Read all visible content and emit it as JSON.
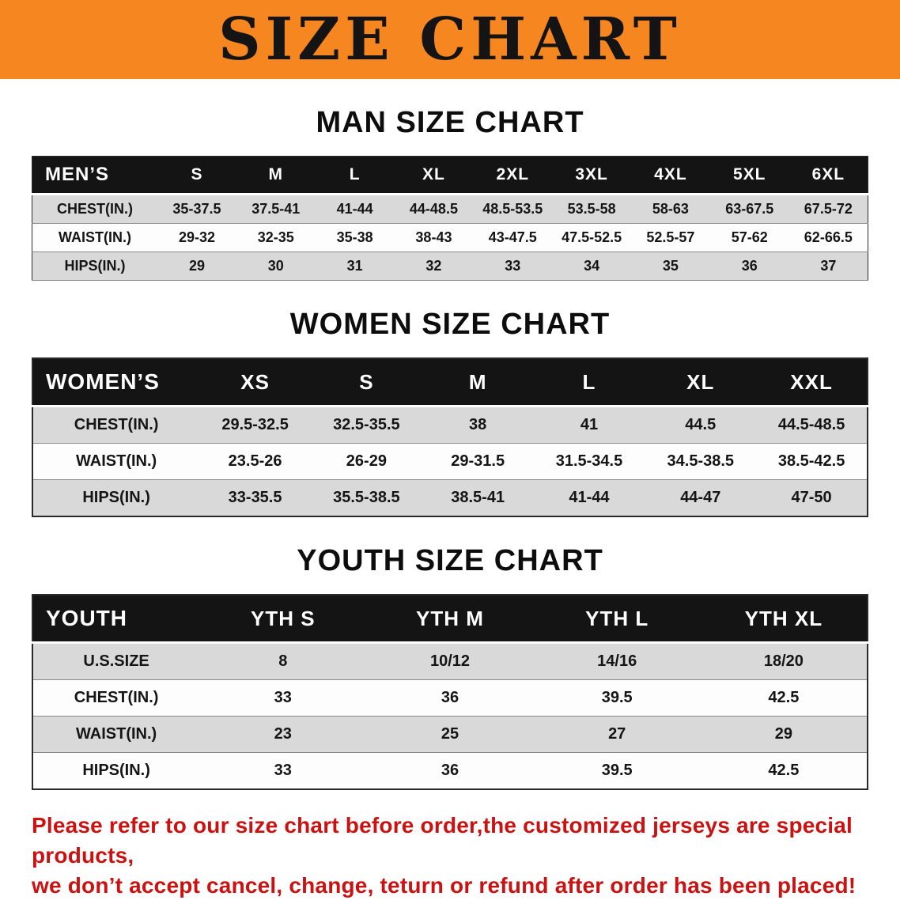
{
  "banner": {
    "title": "SIZE CHART",
    "background_color": "#f6861f",
    "text_color": "#141414"
  },
  "sections": [
    {
      "heading": "MAN SIZE CHART",
      "table": {
        "header": [
          "MEN’S",
          "S",
          "M",
          "L",
          "XL",
          "2XL",
          "3XL",
          "4XL",
          "5XL",
          "6XL"
        ],
        "rows": [
          [
            "CHEST(IN.)",
            "35-37.5",
            "37.5-41",
            "41-44",
            "44-48.5",
            "48.5-53.5",
            "53.5-58",
            "58-63",
            "63-67.5",
            "67.5-72"
          ],
          [
            "WAIST(IN.)",
            "29-32",
            "32-35",
            "35-38",
            "38-43",
            "43-47.5",
            "47.5-52.5",
            "52.5-57",
            "57-62",
            "62-66.5"
          ],
          [
            "HIPS(IN.)",
            "29",
            "30",
            "31",
            "32",
            "33",
            "34",
            "35",
            "36",
            "37"
          ]
        ]
      }
    },
    {
      "heading": "WOMEN SIZE CHART",
      "table": {
        "header": [
          "WOMEN’S",
          "XS",
          "S",
          "M",
          "L",
          "XL",
          "XXL"
        ],
        "rows": [
          [
            "CHEST(IN.)",
            "29.5-32.5",
            "32.5-35.5",
            "38",
            "41",
            "44.5",
            "44.5-48.5"
          ],
          [
            "WAIST(IN.)",
            "23.5-26",
            "26-29",
            "29-31.5",
            "31.5-34.5",
            "34.5-38.5",
            "38.5-42.5"
          ],
          [
            "HIPS(IN.)",
            "33-35.5",
            "35.5-38.5",
            "38.5-41",
            "41-44",
            "44-47",
            "47-50"
          ]
        ]
      }
    },
    {
      "heading": "YOUTH SIZE CHART",
      "table": {
        "header": [
          "YOUTH",
          "YTH S",
          "YTH M",
          "YTH L",
          "YTH XL"
        ],
        "rows": [
          [
            "U.S.SIZE",
            "8",
            "10/12",
            "14/16",
            "18/20"
          ],
          [
            "CHEST(IN.)",
            "33",
            "36",
            "39.5",
            "42.5"
          ],
          [
            "WAIST(IN.)",
            "23",
            "25",
            "27",
            "29"
          ],
          [
            "HIPS(IN.)",
            "33",
            "36",
            "39.5",
            "42.5"
          ]
        ]
      }
    }
  ],
  "disclaimer": {
    "color": "#cc1111",
    "lines": [
      "Please refer to our size chart before order,the customized jerseys are special products,",
      "we don’t accept cancel, change, teturn or refund after order has been placed!"
    ]
  }
}
